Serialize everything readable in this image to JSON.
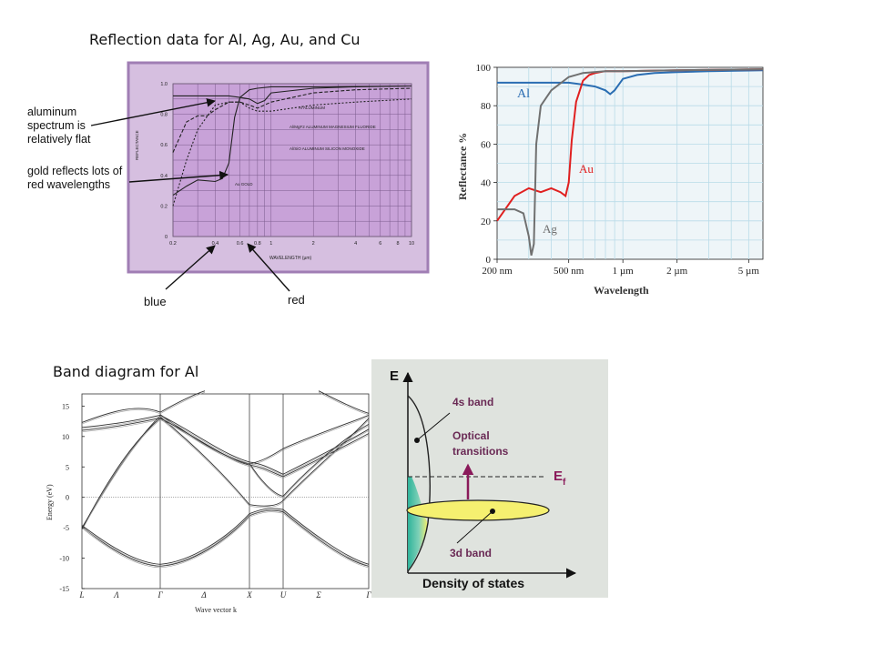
{
  "slide": {
    "title_reflection": "Reflection data for Al, Ag, Au, and Cu",
    "title_band": "Band diagram for Al"
  },
  "chart_data": [
    {
      "id": "scan",
      "type": "line",
      "xlabel": "WAVELENGTH (µm)",
      "ylabel": "REFLECTANCE",
      "xticks": [
        "0.2",
        "0.4",
        "0.6",
        "0.8",
        "1",
        "2",
        "4",
        "6",
        "8",
        "10"
      ],
      "yticks": [
        "0",
        "0.2",
        "0.4",
        "0.6",
        "0.8",
        "1.0"
      ],
      "xlim": [
        0.2,
        10
      ],
      "ylim": [
        0,
        1.0
      ],
      "xscale": "log",
      "grid": true,
      "curve_labels": [
        "Al ALUMINUM",
        "Al/MgF2 ALUMINUM MAGNESIUM FLUORIDE",
        "Al/SiO ALUMINUM SILICON MONOXIDE",
        "Au GOLD"
      ],
      "series": [
        {
          "name": "Al",
          "x": [
            0.2,
            0.25,
            0.3,
            0.4,
            0.5,
            0.6,
            0.7,
            0.8,
            0.9,
            1,
            2,
            4,
            10
          ],
          "y": [
            0.92,
            0.92,
            0.92,
            0.92,
            0.92,
            0.91,
            0.9,
            0.87,
            0.89,
            0.94,
            0.97,
            0.98,
            0.985
          ]
        },
        {
          "name": "Al/MgF2",
          "x": [
            0.2,
            0.25,
            0.3,
            0.35,
            0.4,
            0.5,
            0.6,
            0.7,
            0.8,
            1,
            2,
            4,
            10
          ],
          "y": [
            0.55,
            0.75,
            0.79,
            0.79,
            0.83,
            0.88,
            0.88,
            0.86,
            0.84,
            0.88,
            0.94,
            0.96,
            0.97
          ]
        },
        {
          "name": "Al/SiO",
          "x": [
            0.2,
            0.25,
            0.3,
            0.4,
            0.5,
            0.6,
            0.7,
            0.8,
            1,
            2,
            4,
            10
          ],
          "y": [
            0.2,
            0.5,
            0.7,
            0.86,
            0.88,
            0.88,
            0.84,
            0.82,
            0.82,
            0.86,
            0.88,
            0.9
          ]
        },
        {
          "name": "Au",
          "x": [
            0.2,
            0.25,
            0.3,
            0.4,
            0.45,
            0.5,
            0.55,
            0.6,
            0.7,
            0.8,
            1,
            2,
            10
          ],
          "y": [
            0.27,
            0.33,
            0.37,
            0.36,
            0.38,
            0.48,
            0.78,
            0.91,
            0.96,
            0.97,
            0.98,
            0.98,
            0.985
          ]
        }
      ],
      "annotations": [
        "aluminum spectrum is relatively flat",
        "gold reflects lots of red wavelengths",
        "blue",
        "red"
      ]
    },
    {
      "id": "reflectance",
      "type": "line",
      "xlabel": "Wavelength",
      "ylabel": "Reflectance %",
      "xticks": [
        "200 nm",
        "500 nm",
        "1 µm",
        "2 µm",
        "5 µm"
      ],
      "yticks": [
        "0",
        "20",
        "40",
        "60",
        "80",
        "100"
      ],
      "xlim": [
        200,
        6000
      ],
      "xscale": "log",
      "ylim": [
        0,
        100
      ],
      "grid": true,
      "series": [
        {
          "name": "Al",
          "color": "#2a6db2",
          "x": [
            200,
            300,
            400,
            500,
            600,
            700,
            800,
            850,
            900,
            1000,
            1200,
            1500,
            2000,
            3000,
            6000
          ],
          "y": [
            92,
            92,
            92,
            92,
            91,
            90,
            88,
            86,
            88,
            94,
            96,
            97,
            97.5,
            98,
            98.5
          ]
        },
        {
          "name": "Au",
          "color": "#e02020",
          "x": [
            200,
            250,
            300,
            350,
            400,
            450,
            480,
            500,
            520,
            550,
            600,
            650,
            700,
            800,
            1000,
            2000,
            6000
          ],
          "y": [
            20,
            33,
            37,
            35,
            37,
            35,
            33,
            40,
            62,
            82,
            93,
            96,
            97,
            98,
            98,
            98.5,
            99
          ]
        },
        {
          "name": "Ag",
          "color": "#707070",
          "x": [
            200,
            250,
            280,
            300,
            310,
            320,
            330,
            350,
            400,
            500,
            600,
            800,
            1000,
            2000,
            6000
          ],
          "y": [
            26,
            26,
            24,
            12,
            2,
            8,
            60,
            80,
            88,
            95,
            97,
            98,
            98,
            98.5,
            99
          ]
        }
      ]
    },
    {
      "id": "band",
      "type": "line",
      "xlabel": "Wave vector k",
      "ylabel": "Energy (eV)",
      "xticks": [
        "L",
        "Λ",
        "Γ",
        "Δ",
        "X",
        "U",
        "Σ",
        "Γ"
      ],
      "yticks": [
        "15",
        "10",
        "5",
        "0",
        "-5",
        "-10",
        "-15"
      ],
      "ylim": [
        -15,
        17
      ]
    },
    {
      "id": "dos",
      "type": "line",
      "xlabel": "Density of states",
      "ylabel": "E",
      "labels": {
        "s_band": "4s band",
        "optical": "Optical",
        "transitions": "transitions",
        "fermi": "E",
        "fermi_sub": "f",
        "d_band": "3d band"
      }
    }
  ]
}
